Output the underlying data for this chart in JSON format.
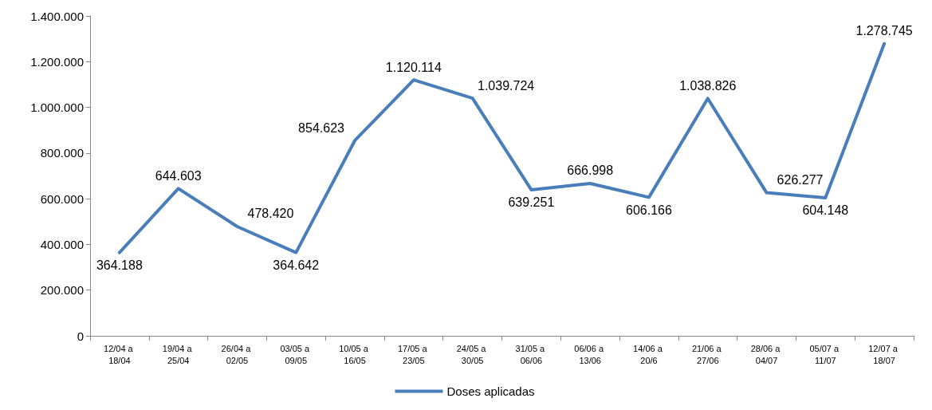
{
  "chart_data": {
    "type": "line",
    "categories": [
      "12/04 a 18/04",
      "19/04 a 25/04",
      "26/04 a 02/05",
      "03/05 a 09/05",
      "10/05 a 16/05",
      "17/05 a 23/05",
      "24/05 a 30/05",
      "31/05 a 06/06",
      "06/06 a 13/06",
      "14/06 a 20/6",
      "21/06 a 27/06",
      "28/06 a 04/07",
      "05/07 a 11/07",
      "12/07 a 18/07"
    ],
    "series": [
      {
        "name": "Doses aplicadas",
        "color": "#4a7ebb",
        "values": [
          364188,
          644603,
          478420,
          364642,
          854623,
          1120114,
          1039724,
          639251,
          666998,
          606166,
          1038826,
          626277,
          604148,
          1278745
        ],
        "value_labels": [
          "364.188",
          "644.603",
          "478.420",
          "364.642",
          "854.623",
          "1.120.114",
          "1.039.724",
          "639.251",
          "666.998",
          "606.166",
          "1.038.826",
          "626.277",
          "604.148",
          "1.278.745"
        ]
      }
    ],
    "ylim": [
      0,
      1400000
    ],
    "yticks": [
      {
        "value": 0,
        "label": "0"
      },
      {
        "value": 200000,
        "label": "200.000"
      },
      {
        "value": 400000,
        "label": "400.000"
      },
      {
        "value": 600000,
        "label": "600.000"
      },
      {
        "value": 800000,
        "label": "800.000"
      },
      {
        "value": 1000000,
        "label": "1.000.000"
      },
      {
        "value": 1200000,
        "label": "1.200.000"
      },
      {
        "value": 1400000,
        "label": "1.400.000"
      }
    ],
    "grid": false,
    "legend": "bottom",
    "marker": "none",
    "line_style": "solid"
  }
}
